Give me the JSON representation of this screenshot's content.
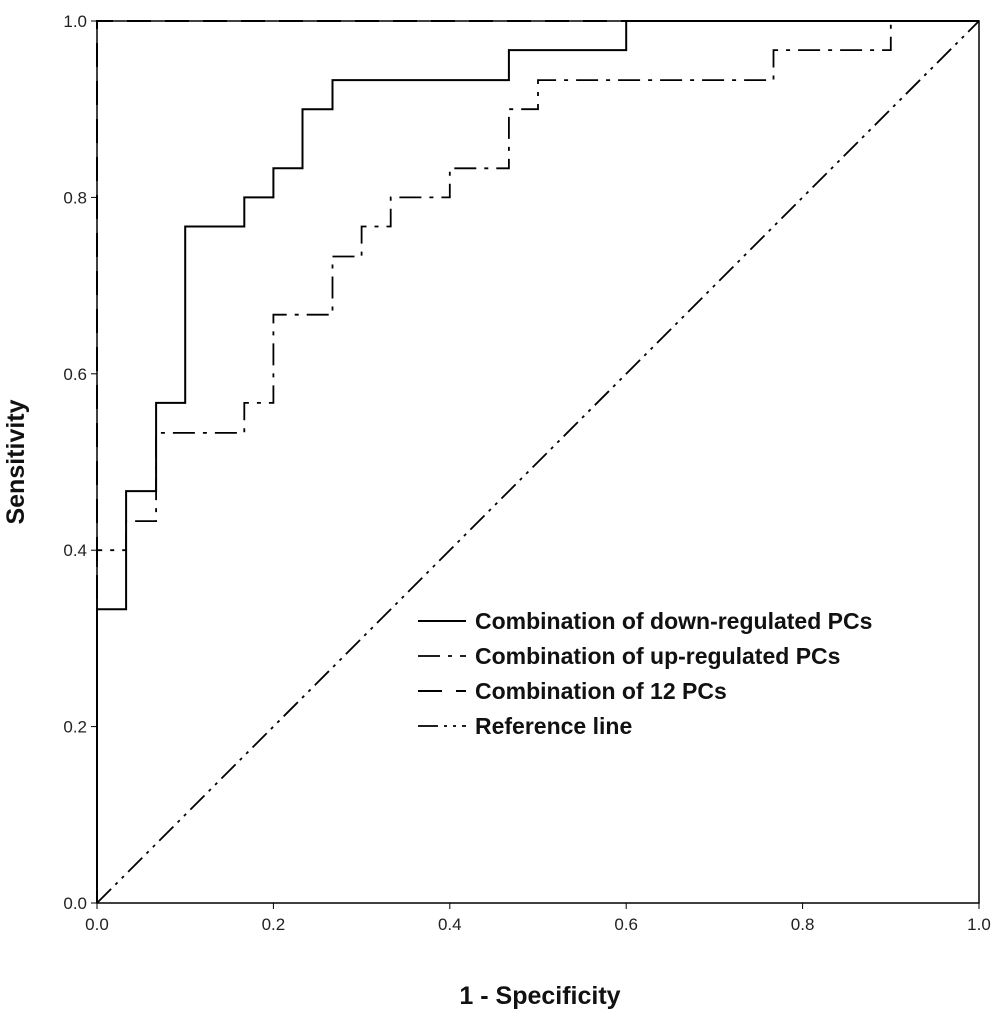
{
  "chart_data": {
    "type": "line",
    "xlabel": "1 - Specificity",
    "ylabel": "Sensitivity",
    "xlim": [
      0,
      1
    ],
    "ylim": [
      0,
      1
    ],
    "x_ticks": [
      "0.0",
      "0.2",
      "0.4",
      "0.6",
      "0.8",
      "1.0"
    ],
    "y_ticks": [
      "0.0",
      "0.2",
      "0.4",
      "0.6",
      "0.8",
      "1.0"
    ],
    "grid": false,
    "legend_position": "center-right",
    "series": [
      {
        "name": "Combination of down-regulated PCs",
        "style": "solid",
        "x": [
          0,
          0,
          0.033,
          0.033,
          0.067,
          0.067,
          0.1,
          0.1,
          0.167,
          0.167,
          0.2,
          0.2,
          0.233,
          0.233,
          0.267,
          0.267,
          0.467,
          0.467,
          0.6,
          0.6,
          1.0
        ],
        "y": [
          0,
          0.333,
          0.333,
          0.467,
          0.467,
          0.567,
          0.567,
          0.767,
          0.767,
          0.8,
          0.8,
          0.833,
          0.833,
          0.9,
          0.9,
          0.933,
          0.933,
          0.967,
          0.967,
          1.0,
          1.0
        ]
      },
      {
        "name": "Combination of up-regulated PCs",
        "style": "dash-dot",
        "x": [
          0,
          0,
          0.033,
          0.033,
          0.067,
          0.067,
          0.167,
          0.167,
          0.2,
          0.2,
          0.267,
          0.267,
          0.3,
          0.3,
          0.333,
          0.333,
          0.4,
          0.4,
          0.467,
          0.467,
          0.5,
          0.5,
          0.767,
          0.767,
          0.9,
          0.9,
          1.0
        ],
        "y": [
          0,
          0.4,
          0.4,
          0.433,
          0.433,
          0.533,
          0.533,
          0.567,
          0.567,
          0.667,
          0.667,
          0.733,
          0.733,
          0.767,
          0.767,
          0.8,
          0.8,
          0.833,
          0.833,
          0.9,
          0.9,
          0.933,
          0.933,
          0.967,
          0.967,
          1.0,
          1.0
        ]
      },
      {
        "name": "Combination of 12 PCs",
        "style": "dashed",
        "x": [
          0,
          0,
          1.0
        ],
        "y": [
          0,
          1.0,
          1.0
        ]
      },
      {
        "name": "Reference line",
        "style": "dash-dot-dot",
        "x": [
          0,
          1.0
        ],
        "y": [
          0,
          1.0
        ]
      }
    ]
  }
}
